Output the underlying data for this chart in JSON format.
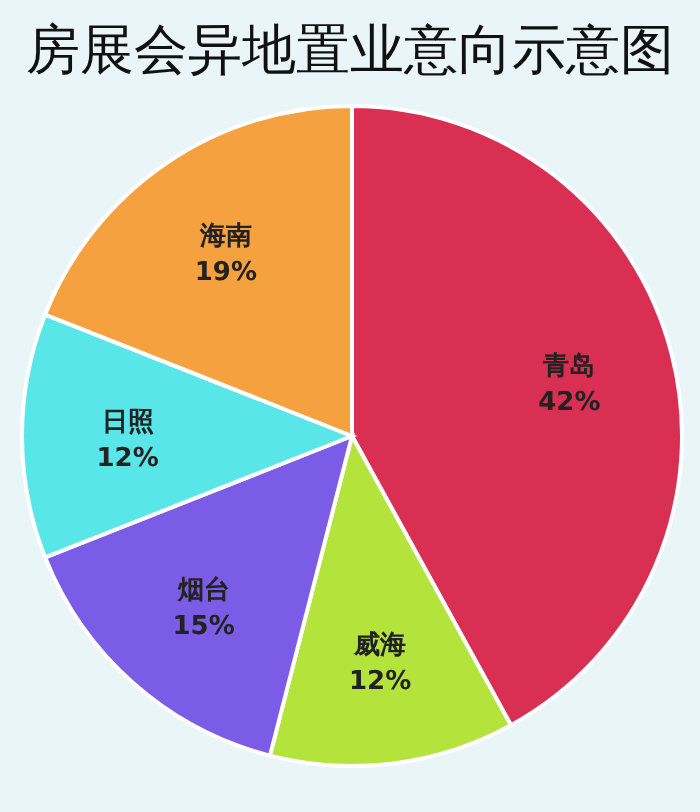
{
  "chart_data": {
    "type": "pie",
    "title": "房展会异地置业意向示意图",
    "categories": [
      "青岛",
      "威海",
      "烟台",
      "日照",
      "海南"
    ],
    "values": [
      42,
      12,
      15,
      12,
      19
    ],
    "colors": [
      "#d92f52",
      "#b4e43c",
      "#7b5ce6",
      "#58e6e8",
      "#f6a13f"
    ],
    "value_labels": [
      "42%",
      "12%",
      "15%",
      "12%",
      "19%"
    ]
  }
}
